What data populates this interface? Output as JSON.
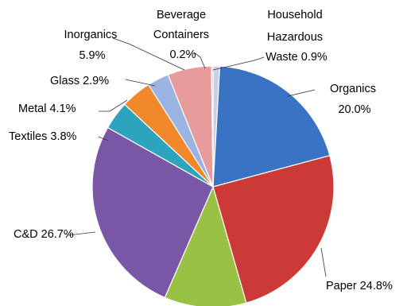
{
  "chart_data": {
    "type": "pie",
    "title": "",
    "start": "top",
    "direction": "clockwise",
    "slices": [
      {
        "name": "Household Hazardous Waste",
        "lines": [
          "Household",
          "Hazardous",
          "Waste 0.9%"
        ],
        "value": 0.9,
        "color": "#c9cfe6"
      },
      {
        "name": "Organics",
        "lines": [
          "Organics",
          "20.0%"
        ],
        "value": 20.0,
        "color": "#3a73c4"
      },
      {
        "name": "Paper",
        "lines": [
          "Paper 24.8%"
        ],
        "value": 24.8,
        "color": "#cc3a37"
      },
      {
        "name": "Unlabeled",
        "lines": [],
        "value": 11.0,
        "color": "#98c145"
      },
      {
        "name": "C&D",
        "lines": [
          "C&D 26.7%"
        ],
        "value": 26.7,
        "color": "#7956a6"
      },
      {
        "name": "Textiles",
        "lines": [
          "Textiles 3.8%"
        ],
        "value": 3.8,
        "color": "#2ea3bd"
      },
      {
        "name": "Metal",
        "lines": [
          "Metal 4.1%"
        ],
        "value": 4.1,
        "color": "#f1892c"
      },
      {
        "name": "Glass",
        "lines": [
          "Glass 2.9%"
        ],
        "value": 2.9,
        "color": "#9bb4e2"
      },
      {
        "name": "Inorganics",
        "lines": [
          "Inorganics",
          "5.9%"
        ],
        "value": 5.9,
        "color": "#e89b9b"
      },
      {
        "name": "Beverage Containers",
        "lines": [
          "Beverage",
          "Containers",
          "0.2%"
        ],
        "value": 0.2,
        "color": "#b8b2cf"
      }
    ]
  }
}
